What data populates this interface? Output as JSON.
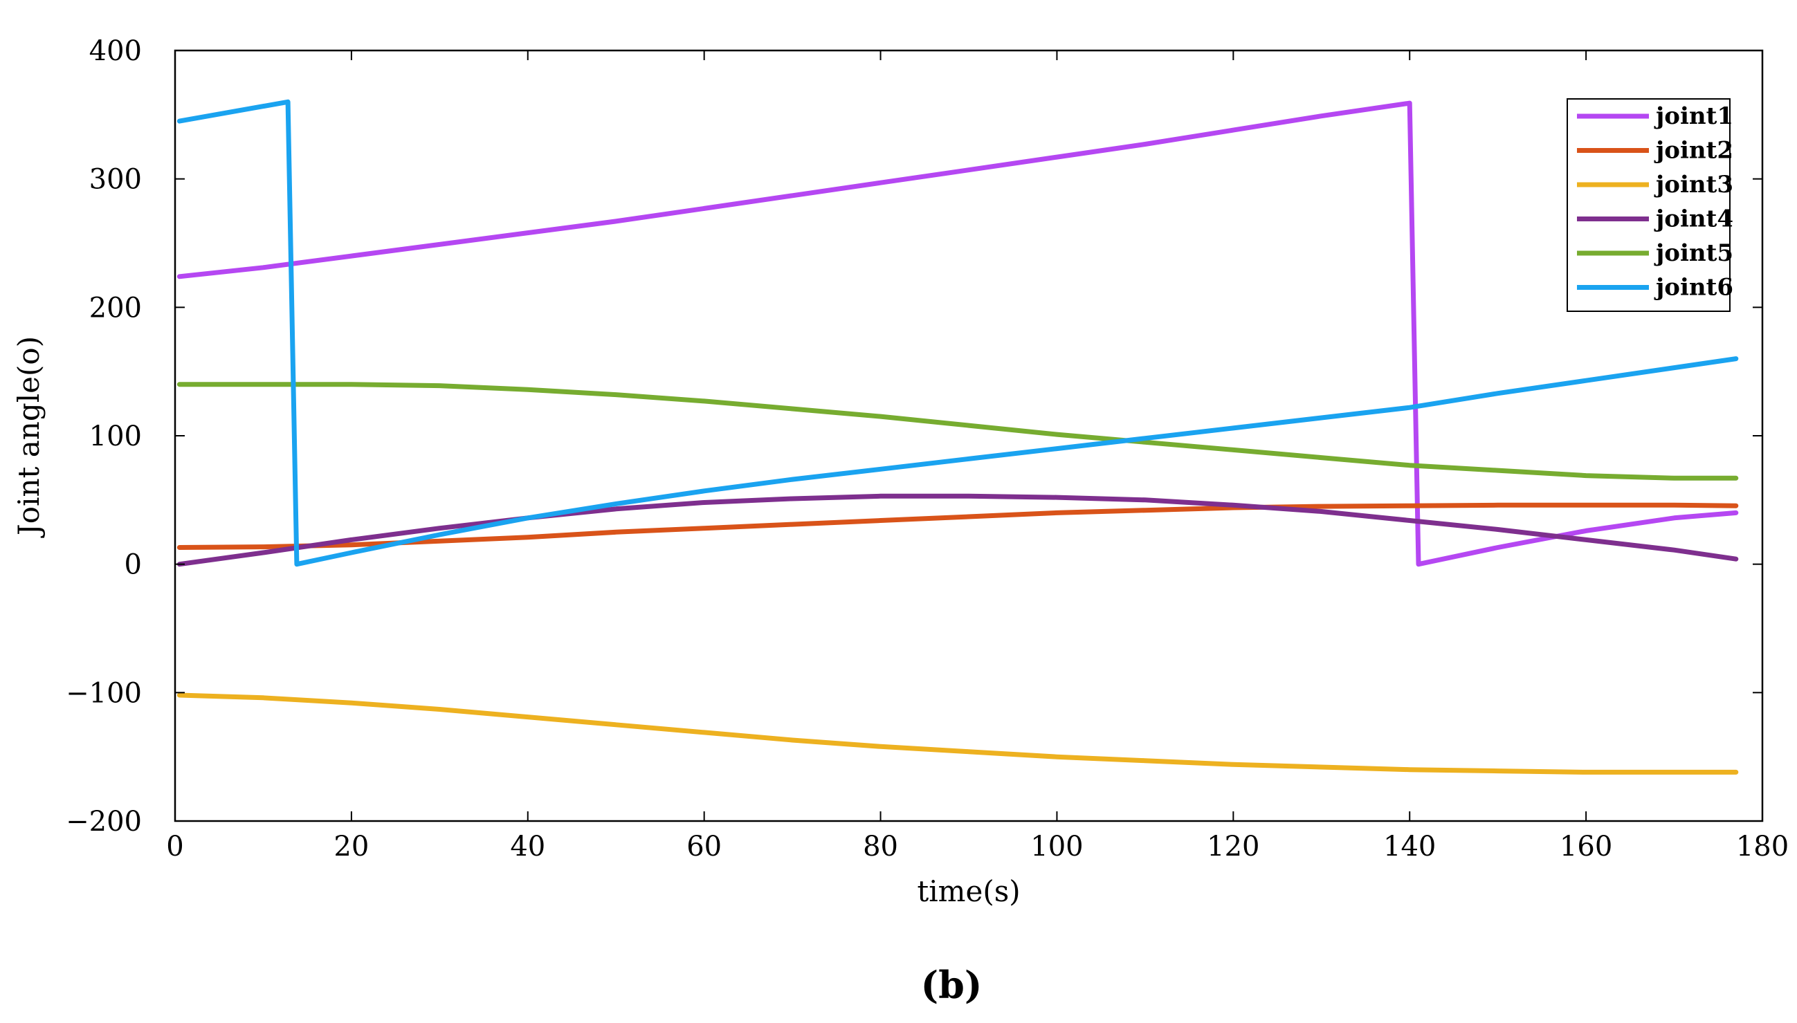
{
  "chart_data": {
    "type": "line",
    "title": "",
    "xlabel": "time(s)",
    "ylabel": "Joint angle(o)",
    "xlim": [
      0,
      180
    ],
    "ylim": [
      -200,
      400
    ],
    "xticks": [
      0,
      20,
      40,
      60,
      80,
      100,
      120,
      140,
      160,
      180
    ],
    "yticks": [
      -200,
      -100,
      0,
      100,
      200,
      300,
      400
    ],
    "xtick_labels": [
      "0",
      "20",
      "40",
      "60",
      "80",
      "100",
      "120",
      "140",
      "160",
      "180"
    ],
    "ytick_labels": [
      "−200",
      "−100",
      "0",
      "100",
      "200",
      "300",
      "400"
    ],
    "grid": false,
    "legend_position": "top-right",
    "caption": "(b)",
    "series": [
      {
        "name": "joint1",
        "color": "#B547F2",
        "x": [
          0.5,
          10,
          20,
          30,
          40,
          50,
          60,
          70,
          80,
          90,
          100,
          110,
          120,
          130,
          140,
          141,
          150,
          160,
          170,
          177
        ],
        "y": [
          224,
          231,
          240,
          249,
          258,
          267,
          277,
          287,
          297,
          307,
          317,
          327,
          338,
          349,
          359,
          0,
          13,
          26,
          36,
          40
        ]
      },
      {
        "name": "joint2",
        "color": "#D95319",
        "x": [
          0.5,
          10,
          20,
          30,
          40,
          50,
          60,
          70,
          80,
          90,
          100,
          110,
          120,
          130,
          140,
          150,
          160,
          170,
          177
        ],
        "y": [
          13,
          13.5,
          15,
          18,
          21,
          25,
          28,
          31,
          34,
          37,
          40,
          42,
          44,
          45,
          45.5,
          46,
          46,
          46,
          45.5
        ]
      },
      {
        "name": "joint3",
        "color": "#EDB120",
        "x": [
          0.5,
          10,
          20,
          30,
          40,
          50,
          60,
          70,
          80,
          90,
          100,
          110,
          120,
          130,
          140,
          150,
          160,
          170,
          177
        ],
        "y": [
          -102,
          -104,
          -108,
          -113,
          -119,
          -125,
          -131,
          -137,
          -142,
          -146,
          -150,
          -153,
          -156,
          -158,
          -160,
          -161,
          -162,
          -162,
          -162
        ]
      },
      {
        "name": "joint4",
        "color": "#7E2F8E",
        "x": [
          0.5,
          10,
          20,
          30,
          40,
          50,
          60,
          70,
          80,
          90,
          100,
          110,
          120,
          130,
          140,
          150,
          160,
          170,
          177
        ],
        "y": [
          0,
          9,
          19,
          28,
          36,
          43,
          48,
          51,
          53,
          53,
          52,
          50,
          46,
          41,
          34,
          27,
          19,
          11,
          4
        ]
      },
      {
        "name": "joint5",
        "color": "#77AC30",
        "x": [
          0.5,
          10,
          20,
          30,
          40,
          50,
          60,
          70,
          80,
          90,
          100,
          110,
          120,
          130,
          140,
          150,
          160,
          170,
          177
        ],
        "y": [
          140,
          140,
          140,
          139,
          136,
          132,
          127,
          121,
          115,
          108,
          101,
          95,
          89,
          83,
          77,
          73,
          69,
          67,
          67
        ]
      },
      {
        "name": "joint6",
        "color": "#1AA3F0",
        "x": [
          0.5,
          12.8,
          13.8,
          20,
          30,
          40,
          50,
          60,
          70,
          80,
          90,
          100,
          110,
          120,
          130,
          140,
          150,
          160,
          170,
          177
        ],
        "y": [
          345,
          360,
          0,
          9,
          23,
          36,
          47,
          57,
          66,
          74,
          82,
          90,
          98,
          106,
          114,
          122,
          133,
          143,
          153,
          160
        ]
      }
    ]
  }
}
